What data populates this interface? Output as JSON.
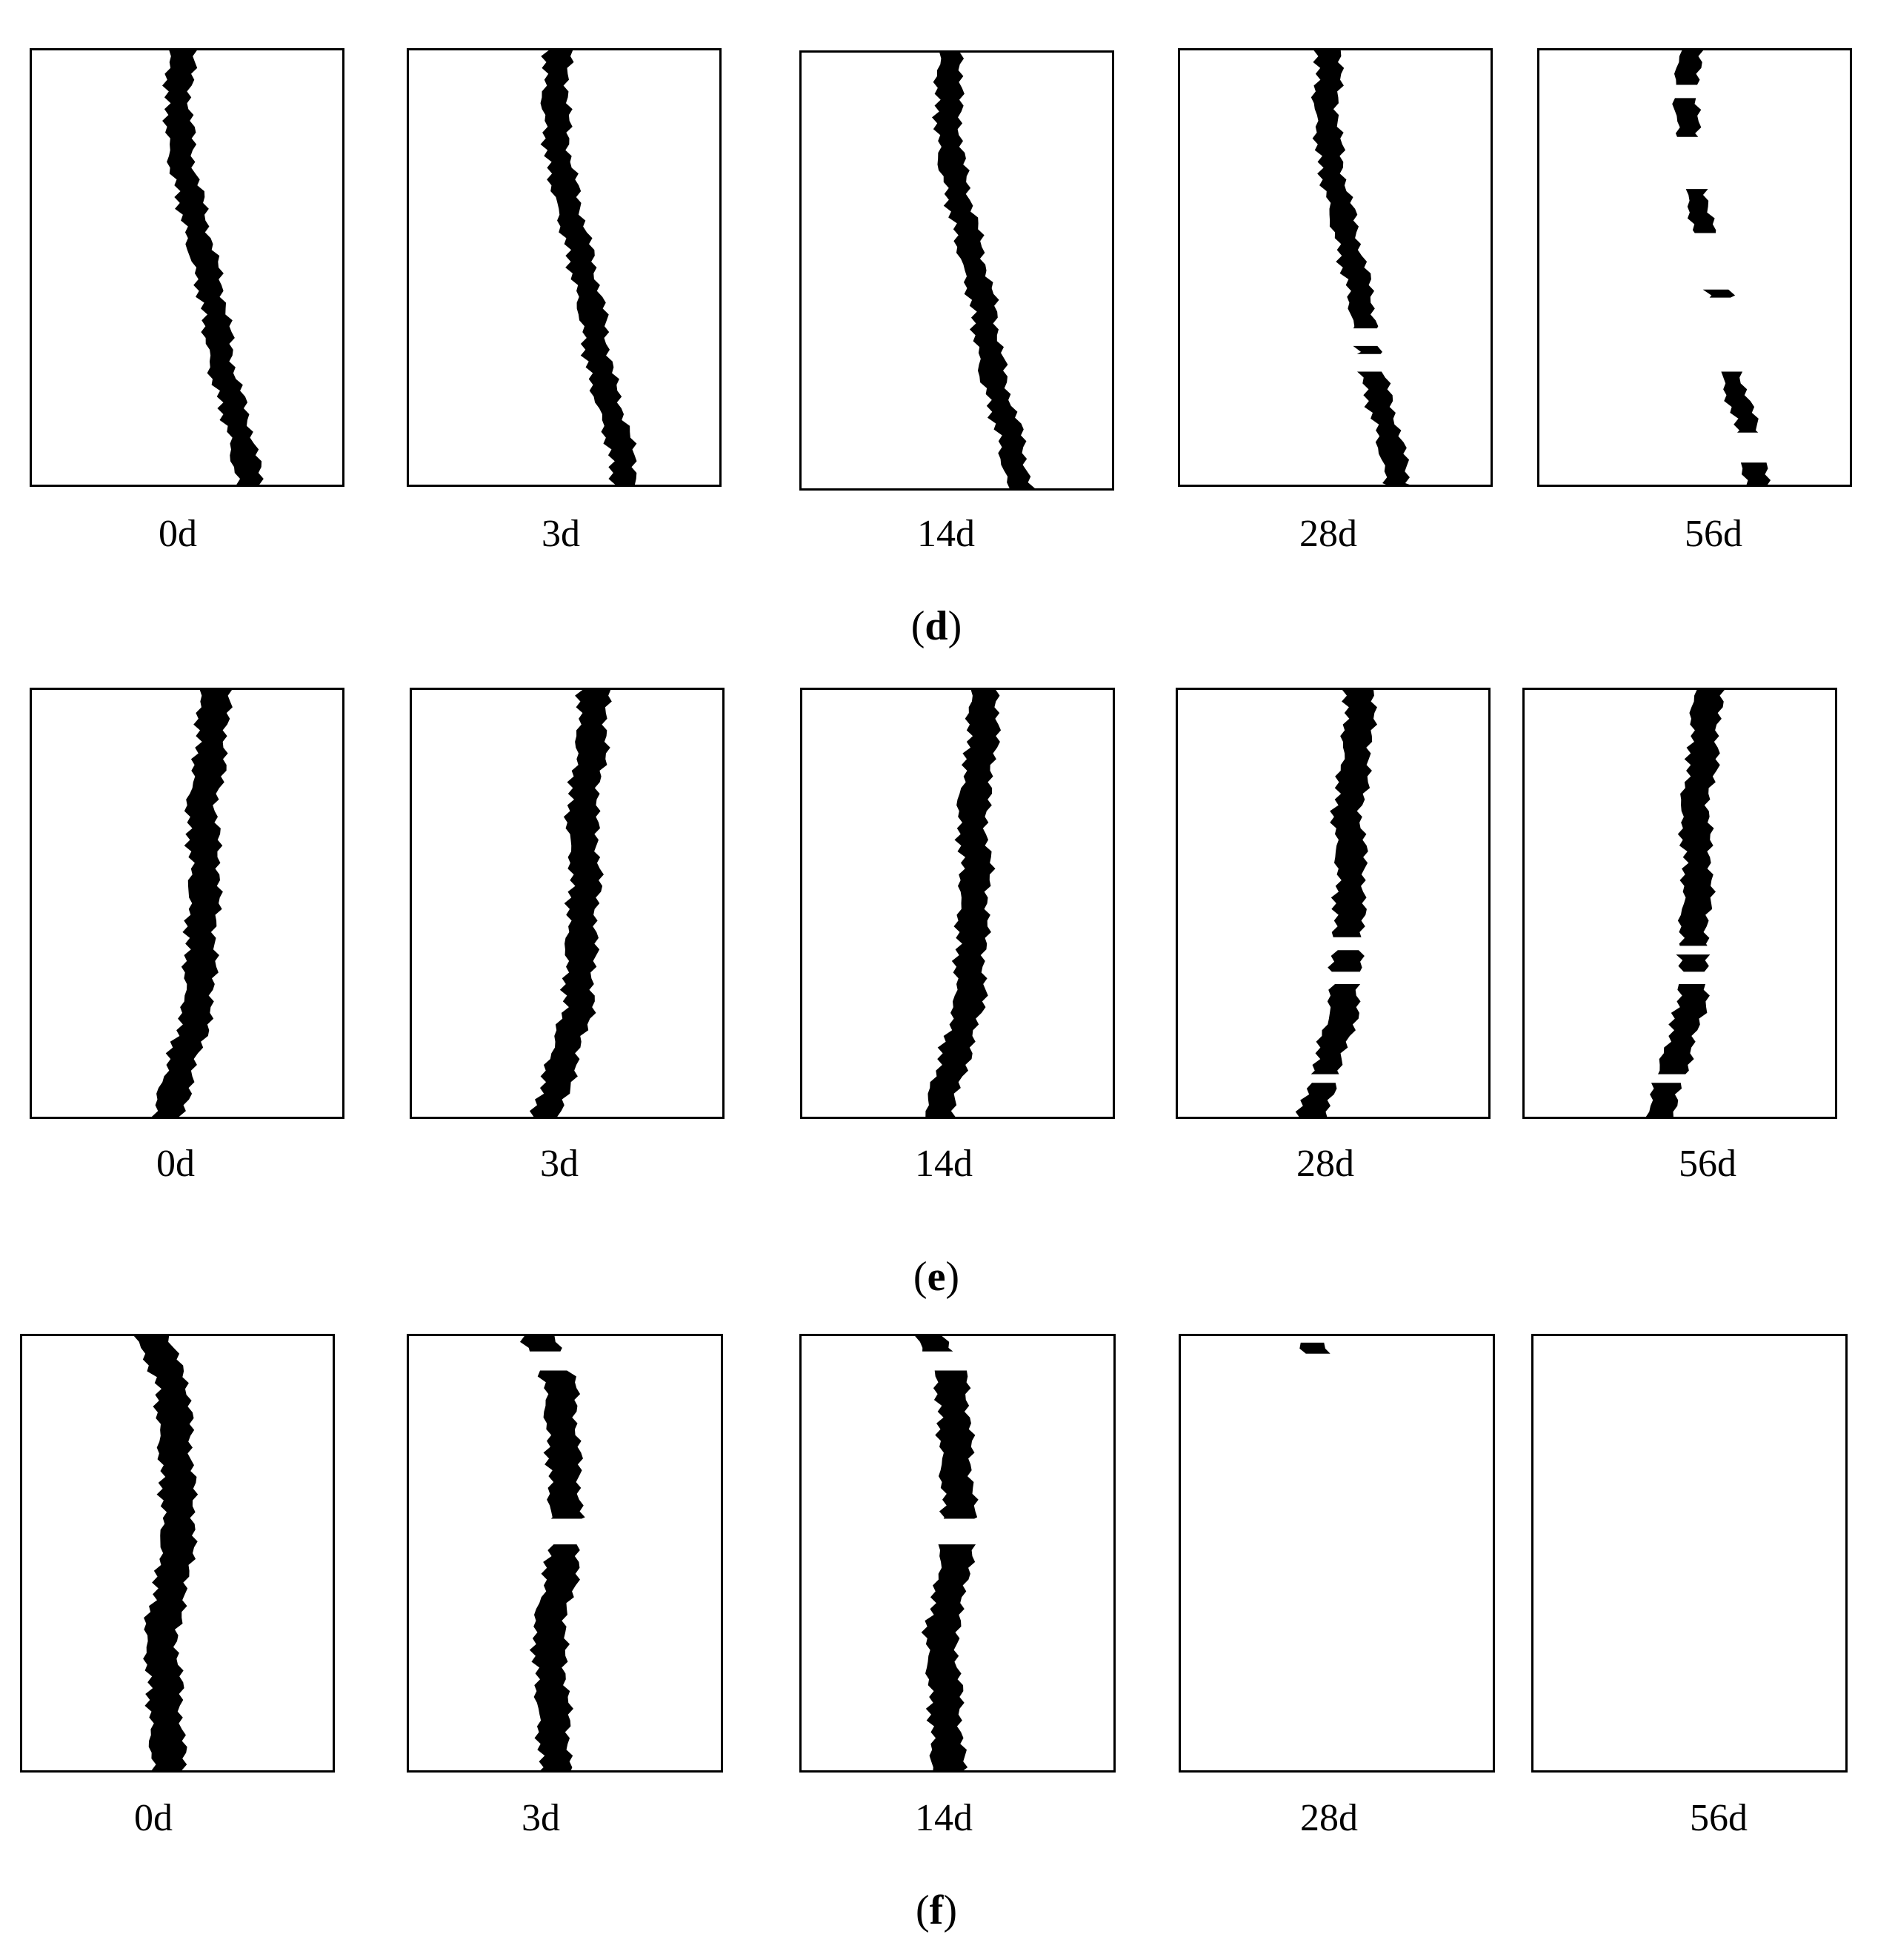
{
  "crack_color": "#000000",
  "rows": [
    {
      "label": "d",
      "panels": [
        {
          "day": "0d",
          "visible_fraction": 1.0,
          "variant": 0
        },
        {
          "day": "3d",
          "visible_fraction": 0.97,
          "variant": 0
        },
        {
          "day": "14d",
          "visible_fraction": 0.9,
          "variant": 0
        },
        {
          "day": "28d",
          "visible_fraction": 0.8,
          "variant": 0
        },
        {
          "day": "56d",
          "visible_fraction": 0.38,
          "variant": 0
        }
      ]
    },
    {
      "label": "e",
      "panels": [
        {
          "day": "0d",
          "visible_fraction": 1.0,
          "variant": 1
        },
        {
          "day": "3d",
          "visible_fraction": 0.92,
          "variant": 1
        },
        {
          "day": "14d",
          "visible_fraction": 0.92,
          "variant": 1
        },
        {
          "day": "28d",
          "visible_fraction": 0.84,
          "variant": 1
        },
        {
          "day": "56d",
          "visible_fraction": 0.76,
          "variant": 1
        }
      ]
    },
    {
      "label": "f",
      "panels": [
        {
          "day": "0d",
          "visible_fraction": 1.0,
          "variant": 2
        },
        {
          "day": "3d",
          "visible_fraction": 0.8,
          "variant": 2
        },
        {
          "day": "14d",
          "visible_fraction": 0.8,
          "variant": 2
        },
        {
          "day": "28d",
          "visible_fraction": 0.02,
          "variant": 2
        },
        {
          "day": "56d",
          "visible_fraction": 0.0,
          "variant": 2
        }
      ]
    }
  ]
}
